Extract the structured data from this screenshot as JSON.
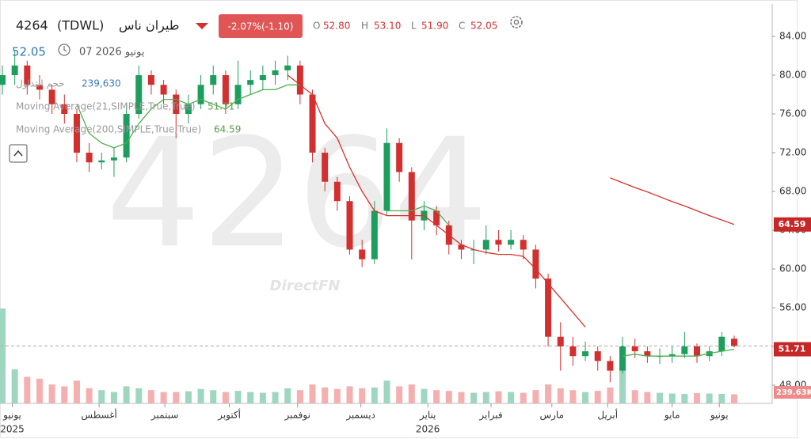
{
  "header": {
    "symbol": "4264",
    "exchange": "(TDWL)",
    "name": "طيران ناس",
    "change": "-2.07%(-1.10)",
    "ohlc": [
      {
        "key": "O",
        "value": "52.80"
      },
      {
        "key": "H",
        "value": "53.10"
      },
      {
        "key": "L",
        "value": "51.90"
      },
      {
        "key": "C",
        "value": "52.05"
      }
    ],
    "price": "52.05",
    "date": "07 2026 يونيو",
    "brand": "DirectFN"
  },
  "chart_data": {
    "type": "candlestick",
    "open": [
      79,
      80,
      81,
      79,
      78.5,
      77,
      76,
      72,
      71,
      71.2,
      71.5,
      76,
      80,
      79,
      78,
      76,
      77,
      79,
      80,
      77,
      79,
      79.5,
      80,
      80.5,
      81,
      78,
      72,
      69,
      67,
      62,
      61,
      66,
      73,
      70,
      65,
      66,
      64.5,
      62.5,
      62,
      62,
      63,
      62.5,
      63,
      62,
      59,
      53,
      52,
      51,
      51.5,
      50.5,
      49.5,
      52,
      51.5,
      51,
      51,
      51.2,
      52,
      51,
      51.5,
      52.8
    ],
    "high": [
      81,
      82.5,
      81.5,
      80,
      79,
      78,
      76.5,
      73,
      72,
      72.5,
      77,
      81,
      80.5,
      79.5,
      78.5,
      78,
      80,
      81,
      80.5,
      81.5,
      80.5,
      81,
      81.5,
      82,
      81.5,
      78.5,
      72.5,
      69.5,
      67.5,
      63,
      67,
      74.5,
      73.5,
      70.5,
      67,
      66.5,
      65,
      63,
      63,
      64.5,
      64,
      64,
      63.5,
      62.5,
      59.5,
      54.5,
      53,
      52.5,
      52,
      51,
      53,
      52.8,
      52,
      51.8,
      52,
      53.5,
      52.3,
      52,
      53.5,
      53.1
    ],
    "low": [
      78,
      79,
      78,
      77.5,
      76,
      75,
      71,
      70,
      70.3,
      69.5,
      71,
      75.5,
      78,
      77,
      73.5,
      75,
      76.5,
      78,
      76,
      76.5,
      78,
      78.5,
      79,
      79.5,
      77,
      71,
      68,
      66,
      61.5,
      60.2,
      60.5,
      65.5,
      69,
      61,
      64,
      63.5,
      61.5,
      61,
      60.5,
      61.5,
      61.8,
      62,
      61,
      58,
      52,
      49.5,
      50,
      50.5,
      49.5,
      48.3,
      49.2,
      50.8,
      50.3,
      50.2,
      50.3,
      50.8,
      50.3,
      50.5,
      51,
      51.9
    ],
    "close": [
      80,
      81,
      79,
      78.5,
      77,
      76,
      72,
      71,
      71.2,
      71.5,
      76,
      80,
      79,
      78,
      76,
      77,
      79,
      80,
      77,
      79,
      79.5,
      80,
      80.5,
      81,
      78,
      72,
      69,
      67,
      62,
      61,
      66,
      73,
      70,
      65,
      66,
      64.5,
      62.5,
      62,
      62,
      63,
      62.5,
      63,
      62,
      59,
      53,
      52,
      51,
      51.5,
      50.5,
      49.5,
      52,
      51.5,
      51,
      51,
      51.2,
      52,
      51,
      51.5,
      53,
      52.05
    ],
    "up_color": "#1e9e5e",
    "down_color": "#d32f2f",
    "volume": {
      "name": "حجم التداول",
      "last_label": "239,630",
      "tag_label": "239.63K",
      "up_color": "#9fd6bf",
      "down_color": "#f4b0b0",
      "values": [
        2500000,
        900000,
        700000,
        650000,
        500000,
        450000,
        600000,
        400000,
        350000,
        300000,
        450000,
        400000,
        350000,
        300000,
        300000,
        320000,
        380000,
        350000,
        300000,
        330000,
        300000,
        280000,
        300000,
        400000,
        350000,
        500000,
        420000,
        380000,
        450000,
        400000,
        420000,
        600000,
        450000,
        500000,
        380000,
        350000,
        330000,
        300000,
        280000,
        300000,
        320000,
        300000,
        280000,
        350000,
        500000,
        400000,
        350000,
        300000,
        330000,
        420000,
        1100000,
        350000,
        300000,
        280000,
        260000,
        250000,
        270000,
        260000,
        250000,
        239630
      ]
    },
    "series": [
      {
        "name": "Moving Average(21,SIMPLE,True,True)",
        "color": "#4caf50",
        "last_label": "51.71",
        "values": [
          null,
          null,
          null,
          null,
          null,
          null,
          77,
          74,
          73,
          72.5,
          73,
          75,
          76.5,
          77.5,
          77.5,
          77,
          77.5,
          77,
          76.5,
          77.5,
          78,
          78.5,
          78.5,
          79,
          79,
          null,
          null,
          null,
          null,
          null,
          null,
          66,
          66,
          66,
          66.5,
          66,
          64.5,
          null,
          null,
          null,
          null,
          null,
          null,
          null,
          null,
          null,
          null,
          null,
          null,
          null,
          51,
          51.2,
          51,
          51,
          51,
          51,
          51,
          51.3,
          51.5,
          51.71
        ]
      },
      {
        "name": "Moving Average(200,SIMPLE,True,True)",
        "color": "#d9302c",
        "last_label": "64.59",
        "values": [
          null,
          null,
          null,
          null,
          null,
          null,
          null,
          null,
          null,
          null,
          null,
          null,
          null,
          null,
          null,
          null,
          null,
          null,
          null,
          null,
          null,
          null,
          null,
          80,
          79,
          78,
          75,
          73.5,
          70.5,
          68,
          66,
          65.5,
          65.5,
          65.5,
          65.5,
          64.5,
          63.5,
          62.5,
          62,
          61.7,
          61.5,
          61.5,
          61.3,
          60,
          58.5,
          57,
          55.5,
          54,
          null,
          69.4,
          68.9,
          68.4,
          67.95,
          67.45,
          66.95,
          66.5,
          66,
          65.5,
          65.05,
          64.59
        ]
      }
    ],
    "ylim": [
      46.12,
      87.35
    ],
    "yticks": [
      {
        "value": 48,
        "label": "48.00"
      },
      {
        "value": 52,
        "label": "52.00"
      },
      {
        "value": 56,
        "label": "56.00"
      },
      {
        "value": 60,
        "label": "60.00"
      },
      {
        "value": 64,
        "label": "64.00"
      },
      {
        "value": 68,
        "label": "68.00"
      },
      {
        "value": 72,
        "label": "72.00"
      },
      {
        "value": 76,
        "label": "76.00"
      },
      {
        "value": 80,
        "label": "80.00"
      },
      {
        "value": 84,
        "label": "84.00"
      }
    ],
    "xlim": [
      0,
      59
    ],
    "xticks": [
      {
        "value": 0.8,
        "label": "يونيو"
      },
      {
        "value": 7.8,
        "label": "أغسطس"
      },
      {
        "value": 13.1,
        "label": "سبتمبر"
      },
      {
        "value": 18.3,
        "label": "أكتوبر"
      },
      {
        "value": 23.8,
        "label": "نوفمبر"
      },
      {
        "value": 28.9,
        "label": "ديسمبر"
      },
      {
        "value": 34.3,
        "label": "يناير"
      },
      {
        "value": 39.4,
        "label": "فبراير"
      },
      {
        "value": 44.3,
        "label": "مارس"
      },
      {
        "value": 48.8,
        "label": "أبريل"
      },
      {
        "value": 54,
        "label": "مايو"
      },
      {
        "value": 57.8,
        "label": "يونيو"
      }
    ],
    "years": [
      {
        "value": 0.8,
        "label": "2025"
      },
      {
        "value": 34.3,
        "label": "2026"
      }
    ]
  }
}
